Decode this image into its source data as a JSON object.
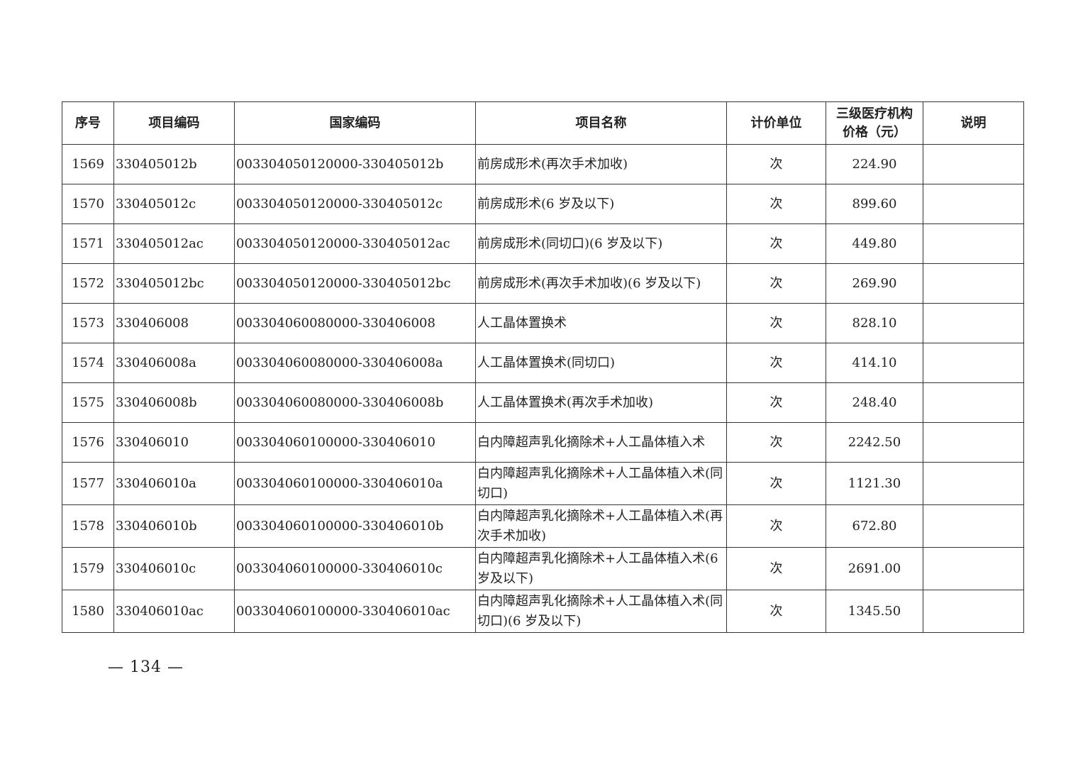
{
  "table": {
    "headers": [
      "序号",
      "项目编码",
      "国家编码",
      "项目名称",
      "计价单位",
      "三级医疗机构价格（元）",
      "说明"
    ],
    "header_price_line1": "三级医疗机构",
    "header_price_line2": "价格（元）",
    "rows": [
      {
        "no": "1569",
        "code": "330405012b",
        "national_code": "003304050120000-330405012b",
        "name": "前房成形术(再次手术加收)",
        "unit": "次",
        "price": "224.90",
        "note": ""
      },
      {
        "no": "1570",
        "code": "330405012c",
        "national_code": "003304050120000-330405012c",
        "name": "前房成形术(6 岁及以下)",
        "unit": "次",
        "price": "899.60",
        "note": ""
      },
      {
        "no": "1571",
        "code": "330405012ac",
        "national_code": "003304050120000-330405012ac",
        "name": "前房成形术(同切口)(6 岁及以下)",
        "unit": "次",
        "price": "449.80",
        "note": ""
      },
      {
        "no": "1572",
        "code": "330405012bc",
        "national_code": "003304050120000-330405012bc",
        "name": "前房成形术(再次手术加收)(6 岁及以下)",
        "unit": "次",
        "price": "269.90",
        "note": ""
      },
      {
        "no": "1573",
        "code": "330406008",
        "national_code": "003304060080000-330406008",
        "name": "人工晶体置换术",
        "unit": "次",
        "price": "828.10",
        "note": ""
      },
      {
        "no": "1574",
        "code": "330406008a",
        "national_code": "003304060080000-330406008a",
        "name": "人工晶体置换术(同切口)",
        "unit": "次",
        "price": "414.10",
        "note": ""
      },
      {
        "no": "1575",
        "code": "330406008b",
        "national_code": "003304060080000-330406008b",
        "name": "人工晶体置换术(再次手术加收)",
        "unit": "次",
        "price": "248.40",
        "note": ""
      },
      {
        "no": "1576",
        "code": "330406010",
        "national_code": "003304060100000-330406010",
        "name": "白内障超声乳化摘除术+人工晶体植入术",
        "unit": "次",
        "price": "2242.50",
        "note": ""
      },
      {
        "no": "1577",
        "code": "330406010a",
        "national_code": "003304060100000-330406010a",
        "name": "白内障超声乳化摘除术+人工晶体植入术(同切口)",
        "unit": "次",
        "price": "1121.30",
        "note": ""
      },
      {
        "no": "1578",
        "code": "330406010b",
        "national_code": "003304060100000-330406010b",
        "name": "白内障超声乳化摘除术+人工晶体植入术(再次手术加收)",
        "unit": "次",
        "price": "672.80",
        "note": ""
      },
      {
        "no": "1579",
        "code": "330406010c",
        "national_code": "003304060100000-330406010c",
        "name": "白内障超声乳化摘除术+人工晶体植入术(6 岁及以下)",
        "unit": "次",
        "price": "2691.00",
        "note": ""
      },
      {
        "no": "1580",
        "code": "330406010ac",
        "national_code": "003304060100000-330406010ac",
        "name": "白内障超声乳化摘除术+人工晶体植入术(同切口)(6 岁及以下)",
        "unit": "次",
        "price": "1345.50",
        "note": ""
      }
    ]
  },
  "page_number": "— 134 —"
}
